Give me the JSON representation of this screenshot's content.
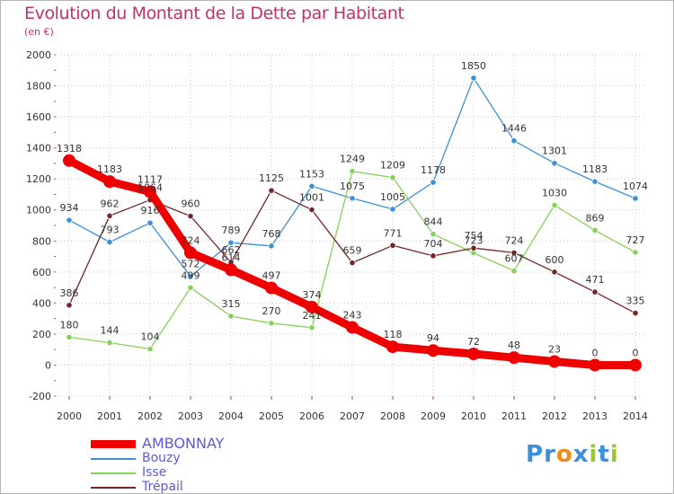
{
  "header": {
    "title": "Evolution du Montant de la Dette par Habitant",
    "unit": "(en €)"
  },
  "colors": {
    "title": "#c0306a",
    "grid": "#c8c8c8",
    "axis_text": "#333333",
    "value_text": "#333333",
    "legend_text": "#5b5bd6"
  },
  "logo": {
    "letters": [
      "P",
      "r",
      "o",
      "x",
      "i",
      "t",
      "i"
    ],
    "colors": [
      "#3d8fd6",
      "#3d8fd6",
      "#f08a1c",
      "#3d8fd6",
      "#9cc730",
      "#3d8fd6",
      "#9cc730"
    ]
  },
  "chart_data": {
    "type": "line",
    "title": "Evolution du Montant de la Dette par Habitant",
    "ylabel": "(en €)",
    "xlabel": "",
    "x": [
      "2000",
      "2001",
      "2002",
      "2003",
      "2004",
      "2005",
      "2006",
      "2007",
      "2008",
      "2009",
      "2010",
      "2011",
      "2012",
      "2013",
      "2014"
    ],
    "ylim": [
      -200,
      2000
    ],
    "yticks": [
      -200,
      0,
      200,
      400,
      600,
      800,
      1000,
      1200,
      1400,
      1600,
      1800,
      2000
    ],
    "ytick_labels": [
      "-200",
      "0",
      "200",
      "400",
      "600",
      "800",
      "1000",
      "1200",
      "1400",
      "1600",
      "1800",
      "2000"
    ],
    "grid": true,
    "legend_position": "bottom-left",
    "series": [
      {
        "name": "AMBONNAY",
        "color": "#ee0000",
        "values": [
          1318,
          1183,
          1117,
          724,
          614,
          497,
          374,
          243,
          118,
          94,
          72,
          48,
          23,
          0,
          0
        ],
        "labels": [
          "1318",
          "1183",
          "1117",
          "724",
          "614",
          "497",
          "374",
          "243",
          "118",
          "94",
          "72",
          "48",
          "23",
          "0",
          "0"
        ]
      },
      {
        "name": "Bouzy",
        "color": "#3d8fd6",
        "values": [
          934,
          793,
          916,
          572,
          789,
          768,
          1153,
          1075,
          1005,
          1178,
          1850,
          1446,
          1301,
          1183,
          1074
        ],
        "labels": [
          "934",
          "793",
          "916",
          "572",
          "789",
          "768",
          "1153",
          "1075",
          "1005",
          "1178",
          "1850",
          "1446",
          "1301",
          "1183",
          "1074"
        ]
      },
      {
        "name": "Isse",
        "color": "#86d157",
        "values": [
          180,
          144,
          104,
          499,
          315,
          270,
          241,
          1249,
          1209,
          844,
          723,
          607,
          1030,
          869,
          727
        ],
        "labels": [
          "180",
          "144",
          "104",
          "499",
          "315",
          "270",
          "241",
          "1249",
          "1209",
          "844",
          "723",
          "607",
          "1030",
          "869",
          "727"
        ]
      },
      {
        "name": "Trépail",
        "color": "#722626",
        "values": [
          386,
          962,
          1064,
          960,
          662,
          1125,
          1001,
          659,
          771,
          704,
          754,
          724,
          600,
          471,
          335
        ],
        "labels": [
          "386",
          "962",
          "1064",
          "960",
          "662",
          "1125",
          "1001",
          "659",
          "771",
          "704",
          "754",
          "724",
          "600",
          "471",
          "335"
        ]
      }
    ]
  }
}
